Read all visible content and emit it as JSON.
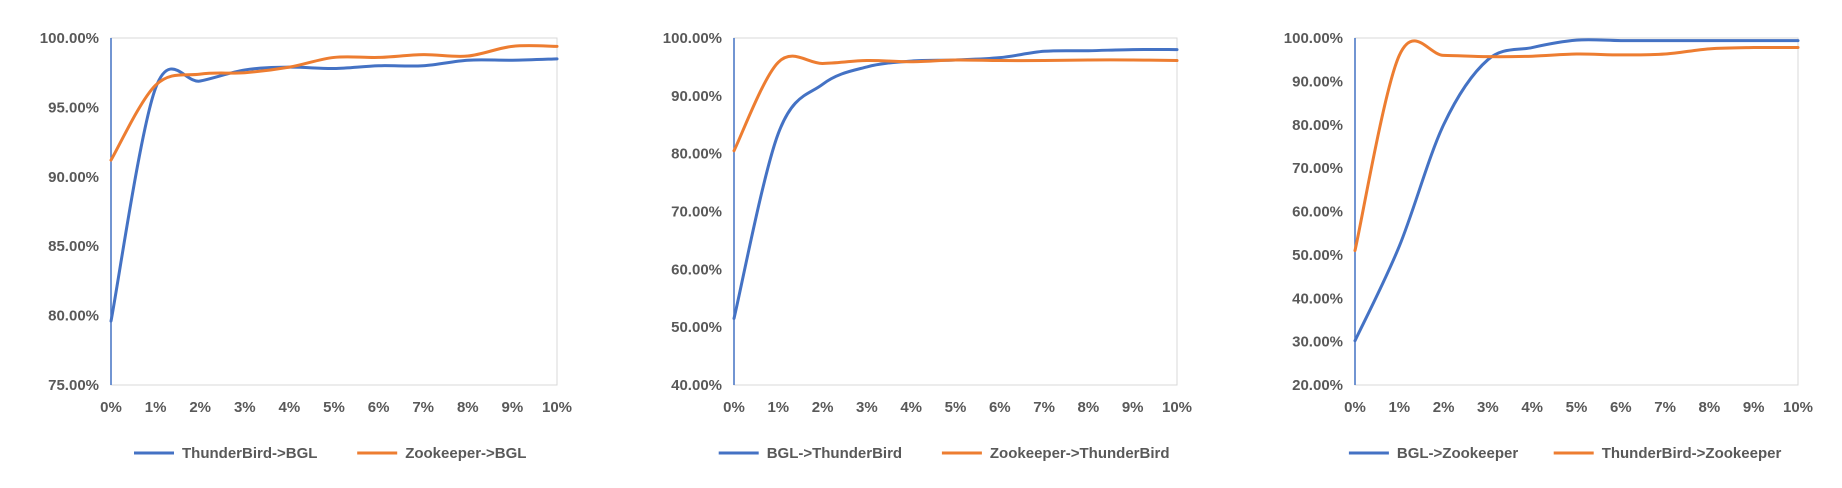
{
  "colors": {
    "blue": "#4472c4",
    "orange": "#ed7d31",
    "axis": "#4472c4",
    "border": "#d9d9d9",
    "text": "#595959"
  },
  "chart_data": [
    {
      "type": "line",
      "categories": [
        "0%",
        "1%",
        "2%",
        "3%",
        "4%",
        "5%",
        "6%",
        "7%",
        "8%",
        "9%",
        "10%"
      ],
      "x": [
        0,
        1,
        2,
        3,
        4,
        5,
        6,
        7,
        8,
        9,
        10
      ],
      "ylim": [
        75,
        100
      ],
      "yticks": [
        75,
        80,
        85,
        90,
        95,
        100
      ],
      "ytick_labels": [
        "75.00%",
        "80.00%",
        "85.00%",
        "90.00%",
        "95.00%",
        "100.00%"
      ],
      "grid": false,
      "legend": "bottom",
      "series": [
        {
          "name": "ThunderBird->BGL",
          "color": "#4472c4",
          "values": [
            79.6,
            96.4,
            96.9,
            97.7,
            97.9,
            97.8,
            98.0,
            98.0,
            98.4,
            98.4,
            98.5
          ]
        },
        {
          "name": "Zookeeper->BGL",
          "color": "#ed7d31",
          "values": [
            91.2,
            96.6,
            97.4,
            97.5,
            97.9,
            98.6,
            98.6,
            98.8,
            98.7,
            99.4,
            99.4
          ]
        }
      ]
    },
    {
      "type": "line",
      "categories": [
        "0%",
        "1%",
        "2%",
        "3%",
        "4%",
        "5%",
        "6%",
        "7%",
        "8%",
        "9%",
        "10%"
      ],
      "x": [
        0,
        1,
        2,
        3,
        4,
        5,
        6,
        7,
        8,
        9,
        10
      ],
      "ylim": [
        40,
        100
      ],
      "yticks": [
        40,
        50,
        60,
        70,
        80,
        90,
        100
      ],
      "ytick_labels": [
        "40.00%",
        "50.00%",
        "60.00%",
        "70.00%",
        "80.00%",
        "90.00%",
        "100.00%"
      ],
      "grid": false,
      "legend": "bottom",
      "series": [
        {
          "name": "BGL->ThunderBird",
          "color": "#4472c4",
          "values": [
            51.5,
            83.5,
            92.0,
            95.0,
            96.0,
            96.2,
            96.6,
            97.7,
            97.8,
            98.0,
            98.0
          ]
        },
        {
          "name": "Zookeeper->ThunderBird",
          "color": "#ed7d31",
          "values": [
            80.5,
            95.8,
            95.6,
            96.1,
            95.9,
            96.2,
            96.1,
            96.1,
            96.2,
            96.2,
            96.1
          ]
        }
      ]
    },
    {
      "type": "line",
      "categories": [
        "0%",
        "1%",
        "2%",
        "3%",
        "4%",
        "5%",
        "6%",
        "7%",
        "8%",
        "9%",
        "10%"
      ],
      "x": [
        0,
        1,
        2,
        3,
        4,
        5,
        6,
        7,
        8,
        9,
        10
      ],
      "ylim": [
        20,
        100
      ],
      "yticks": [
        20,
        30,
        40,
        50,
        60,
        70,
        80,
        90,
        100
      ],
      "ytick_labels": [
        "20.00%",
        "30.00%",
        "40.00%",
        "50.00%",
        "60.00%",
        "70.00%",
        "80.00%",
        "90.00%",
        "100.00%"
      ],
      "grid": false,
      "legend": "bottom",
      "series": [
        {
          "name": "BGL->Zookeeper",
          "color": "#4472c4",
          "values": [
            30.2,
            52.0,
            80.0,
            95.0,
            97.8,
            99.5,
            99.4,
            99.4,
            99.4,
            99.4,
            99.4
          ]
        },
        {
          "name": "ThunderBird->Zookeeper",
          "color": "#ed7d31",
          "values": [
            51.0,
            96.0,
            96.0,
            95.7,
            95.8,
            96.3,
            96.1,
            96.3,
            97.5,
            97.8,
            97.8
          ]
        }
      ]
    }
  ]
}
